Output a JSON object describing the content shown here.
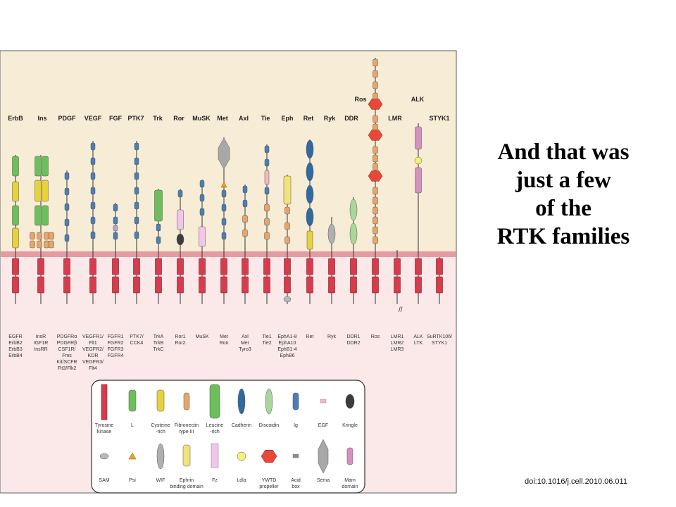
{
  "headline": [
    "And that was",
    "just a few",
    "of the",
    "RTK families"
  ],
  "doi": "doi:10.1016/j.cell.2010.06.011",
  "colors": {
    "extracellular": "#f7ecd6",
    "cytoplasm": "#fbe9ea",
    "membrane": "#e89aa2",
    "tyrosine_kinase": "#d63c4c",
    "L": "#6dbf5c",
    "cysteine_rich": "#e8d23a",
    "fibronectin": "#e9a46a",
    "leucine_rich": "#6dbf5c",
    "cadherin": "#2f6aa0",
    "discoidin": "#a7d89a",
    "ig": "#4a7fb5",
    "egf": "#f4b8c0",
    "kringle": "#3c3c3c",
    "sam": "#b8b8b8",
    "psi": "#e8a42a",
    "wif": "#b0b0b0",
    "ephrin": "#f2e27a",
    "fz": "#f2c6e8",
    "ldla": "#f5f07a",
    "ywtd": "#e8483a",
    "acid_box": "#8a8a8a",
    "sema": "#a8a8a8",
    "mam": "#d890c0"
  },
  "families": [
    {
      "name": "ErbB",
      "members": [
        "EGFR",
        "ErbB2",
        "ErbB3",
        "ErbB4"
      ]
    },
    {
      "name": "Ins",
      "members": [
        "InsR",
        "IGF1R",
        "InsRR"
      ]
    },
    {
      "name": "PDGF",
      "members": [
        "PDGFRα",
        "PDGFRβ",
        "CSF1R/",
        "Fms",
        "Kit/SCFR",
        "Flt3/Flk2"
      ]
    },
    {
      "name": "VEGF",
      "members": [
        "VEGFR1/",
        "Flt1",
        "VEGFR2/",
        "KDR",
        "VEGFR3/",
        "Flt4"
      ]
    },
    {
      "name": "FGF",
      "members": [
        "FGFR1",
        "FGFR2",
        "FGFR3",
        "FGFR4"
      ]
    },
    {
      "name": "PTK7",
      "members": [
        "PTK7/",
        "CCK4"
      ]
    },
    {
      "name": "Trk",
      "members": [
        "TrkA",
        "TrkB",
        "TrkC"
      ]
    },
    {
      "name": "Ror",
      "members": [
        "Ror1",
        "Ror2"
      ]
    },
    {
      "name": "MuSK",
      "members": [
        "MuSK"
      ]
    },
    {
      "name": "Met",
      "members": [
        "Met",
        "Ron"
      ]
    },
    {
      "name": "Axl",
      "members": [
        "Axl",
        "Mer",
        "Tyro3"
      ]
    },
    {
      "name": "Tie",
      "members": [
        "Tie1",
        "Tie2"
      ]
    },
    {
      "name": "Eph",
      "members": [
        "EphA1-8",
        "EphA10",
        "EphB1-4",
        "EphB6"
      ]
    },
    {
      "name": "Ret",
      "members": [
        "Ret"
      ]
    },
    {
      "name": "Ryk",
      "members": [
        "Ryk"
      ]
    },
    {
      "name": "DDR",
      "members": [
        "DDR1",
        "DDR2"
      ]
    },
    {
      "name": "Ros",
      "members": [
        "Ros"
      ]
    },
    {
      "name": "LMR",
      "members": [
        "LMR1",
        "LMR2",
        "LMR3"
      ]
    },
    {
      "name": "ALK",
      "members": [
        "ALK",
        "LTK"
      ]
    },
    {
      "name": "STYK1",
      "members": [
        "SuRTK106/",
        "STYK1"
      ]
    }
  ],
  "legend": [
    {
      "label": [
        "Tyrosine",
        "kinase"
      ],
      "color": "tyrosine_kinase",
      "shape": "tk"
    },
    {
      "label": [
        "L"
      ],
      "color": "L",
      "shape": "cyl"
    },
    {
      "label": [
        "Cysteine",
        "-rich"
      ],
      "color": "cysteine_rich",
      "shape": "cyl"
    },
    {
      "label": [
        "Fibronectin",
        "type III"
      ],
      "color": "fibronectin",
      "shape": "cylsm"
    },
    {
      "label": [
        "Leucine",
        "-rich"
      ],
      "color": "leucine_rich",
      "shape": "cylbig"
    },
    {
      "label": [
        "Cadherin"
      ],
      "color": "cadherin",
      "shape": "oval"
    },
    {
      "label": [
        "Discoidin"
      ],
      "color": "discoidin",
      "shape": "oval"
    },
    {
      "label": [
        "Ig"
      ],
      "color": "ig",
      "shape": "cylsm"
    },
    {
      "label": [
        "EGF"
      ],
      "color": "egf",
      "shape": "tiny"
    },
    {
      "label": [
        "Kringle"
      ],
      "color": "kringle",
      "shape": "ovalsm"
    },
    {
      "label": [
        "SAM"
      ],
      "color": "sam",
      "shape": "flatoval"
    },
    {
      "label": [
        "Psi"
      ],
      "color": "psi",
      "shape": "tri"
    },
    {
      "label": [
        "WIF"
      ],
      "color": "wif",
      "shape": "oval"
    },
    {
      "label": [
        "Ephrin",
        "binding domain"
      ],
      "color": "ephrin",
      "shape": "cyl"
    },
    {
      "label": [
        "Fz"
      ],
      "color": "fz",
      "shape": "rect"
    },
    {
      "label": [
        "Ldla"
      ],
      "color": "ldla",
      "shape": "circle"
    },
    {
      "label": [
        "YWTD",
        "propeller"
      ],
      "color": "ywtd",
      "shape": "hex"
    },
    {
      "label": [
        "Acid",
        "box"
      ],
      "color": "acid_box",
      "shape": "tiny"
    },
    {
      "label": [
        "Sema"
      ],
      "color": "sema",
      "shape": "diamond"
    },
    {
      "label": [
        "Mam",
        "domain"
      ],
      "color": "mam",
      "shape": "cylsm"
    }
  ]
}
